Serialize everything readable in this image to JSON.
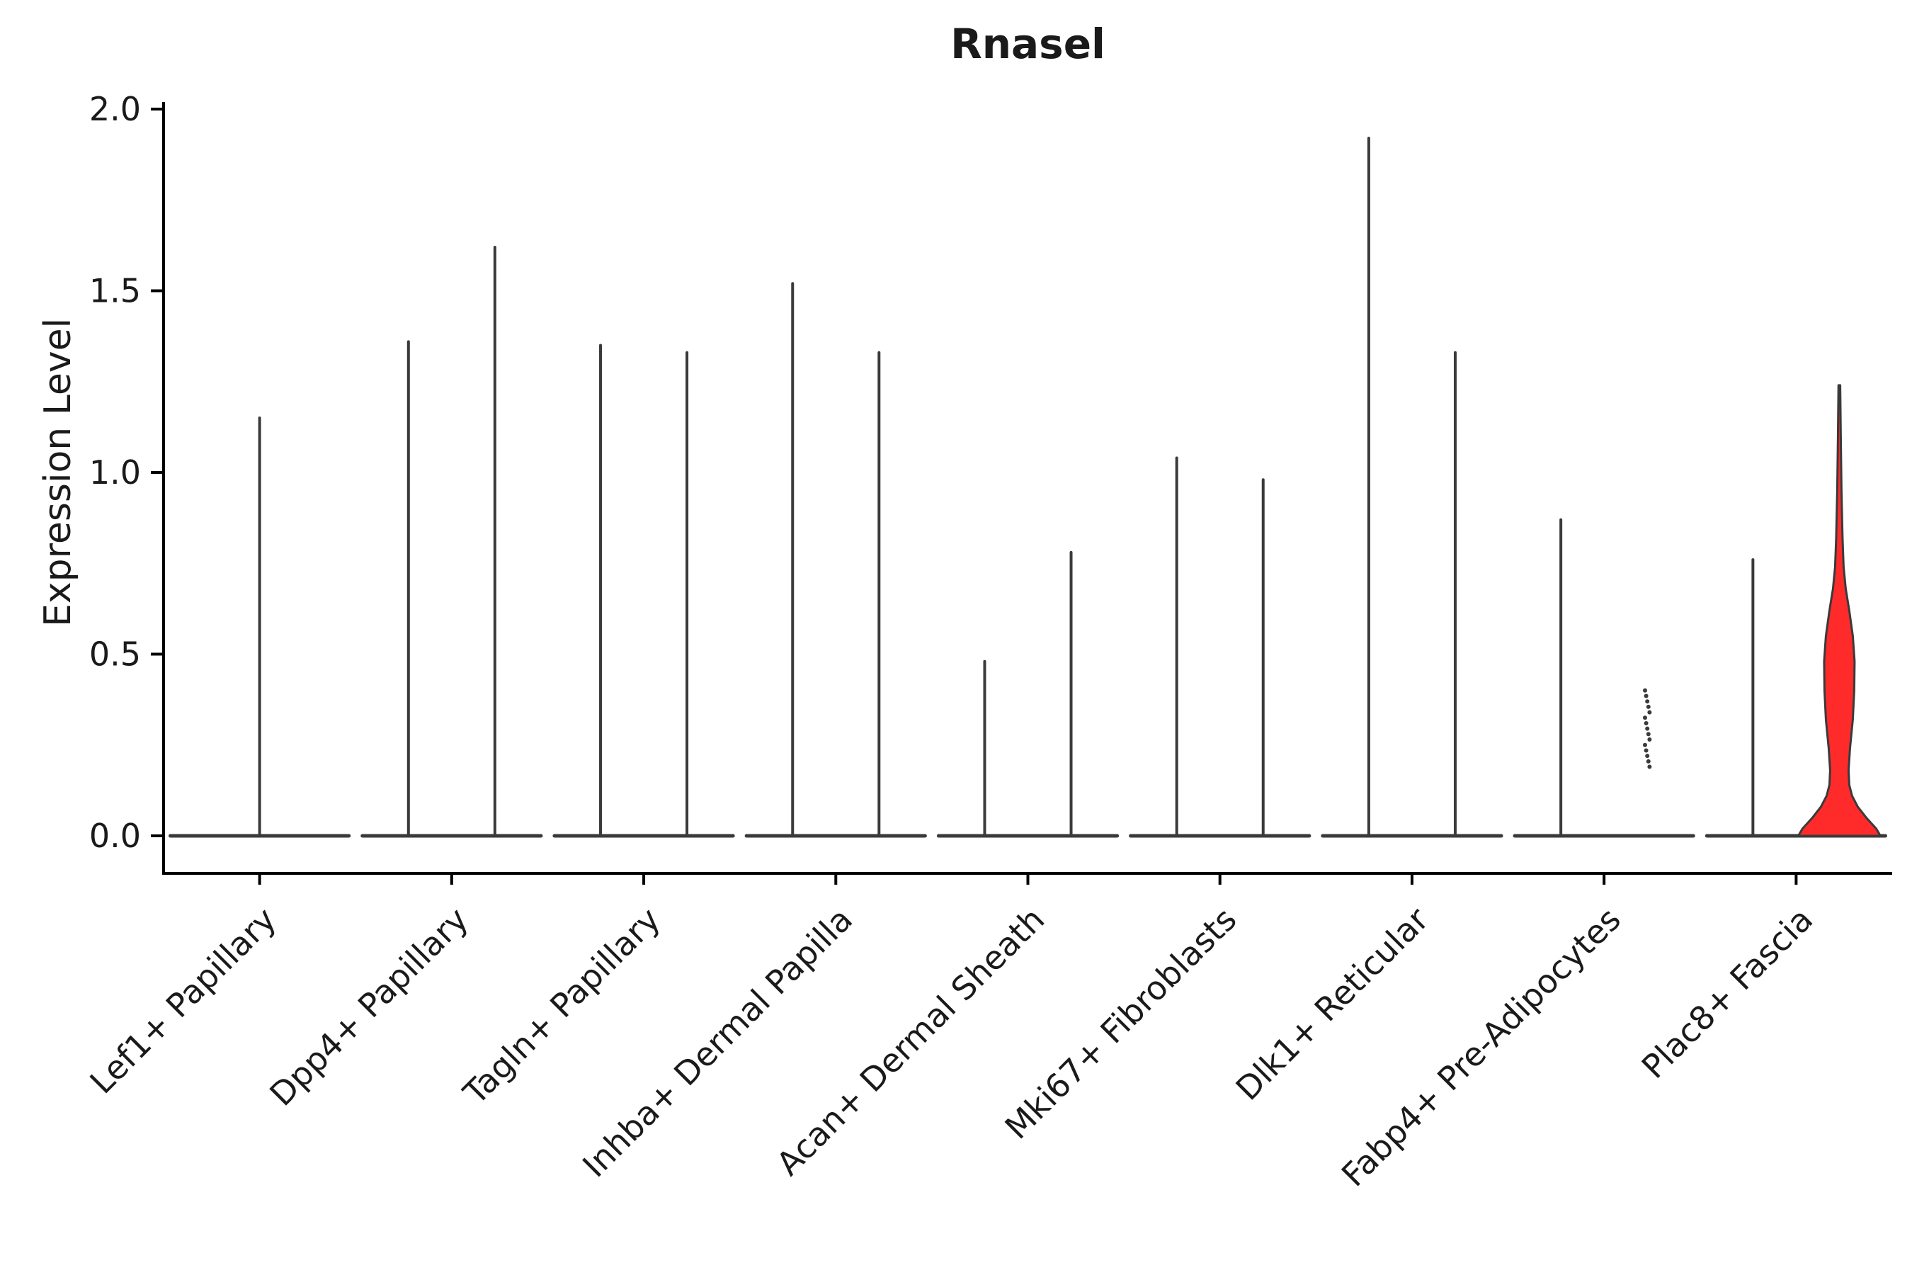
{
  "chart_data": {
    "type": "violin",
    "title": "Rnasel",
    "ylabel": "Expression Level",
    "xlabel": "",
    "ylim": [
      0.0,
      2.0
    ],
    "yticks": [
      "0.0",
      "0.5",
      "1.0",
      "1.5",
      "2.0"
    ],
    "grid": false,
    "legend": "none",
    "colors": {
      "line": "#3a3a3a",
      "axis": "#000000",
      "text": "#1a1a1a",
      "highlight_fill": "#ff2b2b",
      "background": "#ffffff"
    },
    "categories": [
      "Lef1+ Papillary",
      "Dpp4+ Papillary",
      "Tagln+ Papillary",
      "Inhba+ Dermal Papilla",
      "Acan+ Dermal Sheath",
      "Mki67+ Fibroblasts",
      "Dlk1+ Reticular",
      "Fabp4+ Pre-Adipocytes",
      "Plac8+ Fascia"
    ],
    "groups": [
      {
        "category": "Lef1+ Papillary",
        "violins": [
          {
            "max": 1.15,
            "style": "spike"
          }
        ]
      },
      {
        "category": "Dpp4+ Papillary",
        "violins": [
          {
            "max": 1.36,
            "style": "spike"
          },
          {
            "max": 1.62,
            "style": "spike"
          }
        ]
      },
      {
        "category": "Tagln+ Papillary",
        "violins": [
          {
            "max": 1.35,
            "style": "spike"
          },
          {
            "max": 1.33,
            "style": "spike"
          }
        ]
      },
      {
        "category": "Inhba+ Dermal Papilla",
        "violins": [
          {
            "max": 1.52,
            "style": "spike"
          },
          {
            "max": 1.33,
            "style": "spike"
          }
        ]
      },
      {
        "category": "Acan+ Dermal Sheath",
        "violins": [
          {
            "max": 0.48,
            "style": "spike"
          },
          {
            "max": 0.78,
            "style": "spike"
          }
        ]
      },
      {
        "category": "Mki67+ Fibroblasts",
        "violins": [
          {
            "max": 1.04,
            "style": "spike"
          },
          {
            "max": 0.98,
            "style": "spike"
          }
        ]
      },
      {
        "category": "Dlk1+ Reticular",
        "violins": [
          {
            "max": 1.92,
            "style": "spike"
          },
          {
            "max": 1.33,
            "style": "spike"
          }
        ]
      },
      {
        "category": "Fabp4+ Pre-Adipocytes",
        "violins": [
          {
            "max": 0.87,
            "style": "spike"
          },
          {
            "max": 0.4,
            "style": "dots",
            "points": [
              0.4,
              0.385,
              0.37,
              0.355,
              0.34,
              0.325,
              0.31,
              0.295,
              0.28,
              0.265,
              0.25,
              0.235,
              0.22,
              0.205,
              0.19
            ]
          }
        ]
      },
      {
        "category": "Plac8+ Fascia",
        "violins": [
          {
            "max": 0.76,
            "style": "spike"
          },
          {
            "max": 1.24,
            "style": "violin",
            "fill": "#ff2b2b",
            "width_profile": [
              [
                0.0,
                58
              ],
              [
                0.02,
                52
              ],
              [
                0.05,
                38
              ],
              [
                0.08,
                26
              ],
              [
                0.11,
                18
              ],
              [
                0.14,
                14
              ],
              [
                0.18,
                13
              ],
              [
                0.24,
                15
              ],
              [
                0.32,
                19
              ],
              [
                0.4,
                21
              ],
              [
                0.48,
                21.5
              ],
              [
                0.55,
                19
              ],
              [
                0.62,
                14
              ],
              [
                0.68,
                9
              ],
              [
                0.74,
                6
              ],
              [
                0.82,
                4.5
              ],
              [
                0.95,
                3
              ],
              [
                1.1,
                2
              ],
              [
                1.24,
                1.2
              ]
            ]
          }
        ]
      }
    ]
  }
}
